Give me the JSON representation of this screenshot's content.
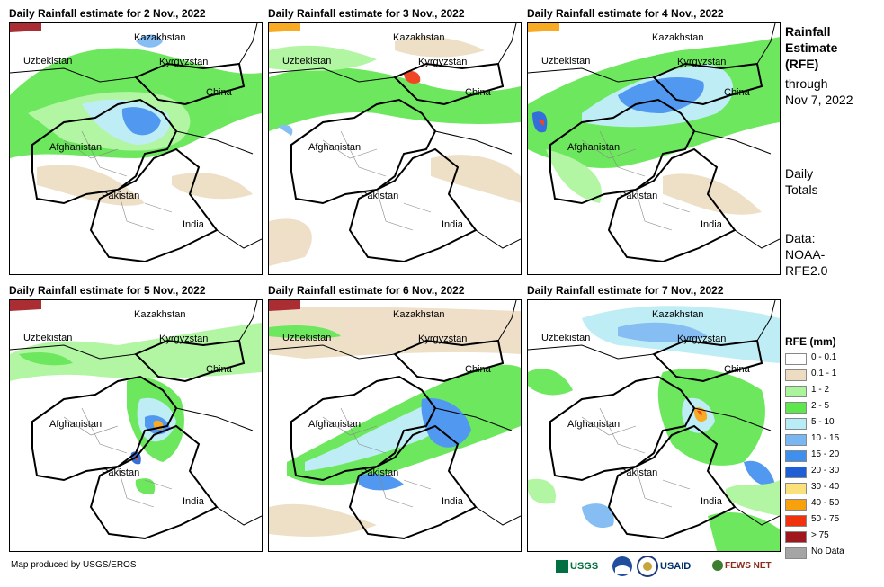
{
  "panels": [
    {
      "title": "Daily Rainfall estimate for 2 Nov., 2022"
    },
    {
      "title": "Daily Rainfall estimate for 3 Nov., 2022"
    },
    {
      "title": "Daily Rainfall estimate for 4 Nov., 2022"
    },
    {
      "title": "Daily Rainfall estimate for 5 Nov., 2022"
    },
    {
      "title": "Daily Rainfall estimate for 6 Nov., 2022"
    },
    {
      "title": "Daily Rainfall estimate for 7 Nov., 2022"
    }
  ],
  "map_labels": {
    "kazakhstan": "Kazakhstan",
    "uzbekistan": "Uzbekistan",
    "kyrgyzstan": "Kyrgyzstan",
    "china": "China",
    "afghanistan": "Afghanistan",
    "pakistan": "Pakistan",
    "india": "India"
  },
  "side_info": {
    "line1": "Rainfall",
    "line2": "Estimate",
    "line3": "(RFE)",
    "line4": "through",
    "line5": "Nov 7, 2022",
    "daily1": "Daily",
    "daily2": "Totals",
    "data1": "Data:",
    "data2": "NOAA-",
    "data3": "RFE2.0"
  },
  "legend": {
    "title": "RFE (mm)",
    "items": [
      {
        "label": "0 - 0.1",
        "color": "#ffffff"
      },
      {
        "label": "0.1 - 1",
        "color": "#eddcc2"
      },
      {
        "label": "1 - 2",
        "color": "#aaf59a"
      },
      {
        "label": "2 - 5",
        "color": "#5ee64d"
      },
      {
        "label": "5 - 10",
        "color": "#b8ecf6"
      },
      {
        "label": "10 - 15",
        "color": "#79b7f2"
      },
      {
        "label": "15 - 20",
        "color": "#3f8fef"
      },
      {
        "label": "20 - 30",
        "color": "#1e5fd6"
      },
      {
        "label": "30 - 40",
        "color": "#fbe17a"
      },
      {
        "label": "40 - 50",
        "color": "#f8a10c"
      },
      {
        "label": "50 - 75",
        "color": "#f0320f"
      },
      {
        "label": "> 75",
        "color": "#a0171e"
      },
      {
        "label": "No Data",
        "color": "#a5a5a5"
      }
    ]
  },
  "credit": "Map produced by USGS/EROS",
  "logos": {
    "usgs": "USGS",
    "usaid": "USAID",
    "fewsnet": "FEWS NET"
  }
}
